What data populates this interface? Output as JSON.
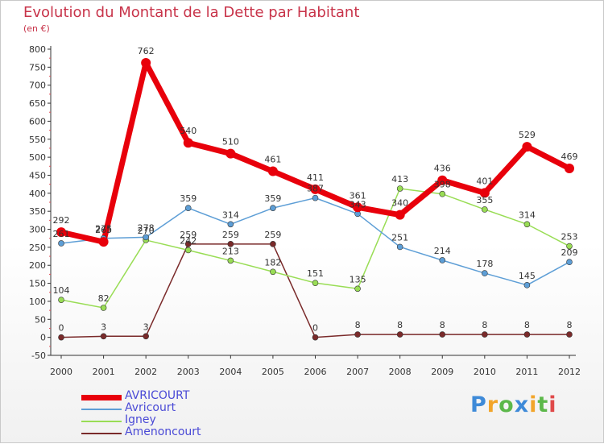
{
  "header": {
    "title": "Evolution du Montant de la Dette par Habitant",
    "subtitle": "(en €)"
  },
  "colors": {
    "title": "#c8344a",
    "axis": "#333333",
    "grid_tick": "#e0505a",
    "legend_text": "#4a4ad6",
    "label_text": "#333333"
  },
  "chart_data": {
    "type": "line",
    "title": "Evolution du Montant de la Dette par Habitant",
    "subtitle": "(en €)",
    "xlabel": "",
    "ylabel": "",
    "x": [
      "2000",
      "2001",
      "2002",
      "2003",
      "2004",
      "2005",
      "2006",
      "2007",
      "2008",
      "2009",
      "2010",
      "2011",
      "2012"
    ],
    "ylim": [
      -50,
      800
    ],
    "yticks": [
      -50,
      0,
      50,
      100,
      150,
      200,
      250,
      300,
      350,
      400,
      450,
      500,
      550,
      600,
      650,
      700,
      750,
      800
    ],
    "legend_position": "bottom-left",
    "series": [
      {
        "name": "AVRICOURT",
        "color": "#e8000b",
        "width": 7,
        "marker": 6,
        "values": [
          292,
          265,
          762,
          540,
          510,
          461,
          411,
          361,
          340,
          436,
          401,
          529,
          469
        ]
      },
      {
        "name": "Avricourt",
        "color": "#5d9ed6",
        "width": 1.5,
        "marker": 3.5,
        "values": [
          261,
          275,
          278,
          359,
          314,
          359,
          387,
          343,
          251,
          214,
          178,
          145,
          209
        ]
      },
      {
        "name": "Igney",
        "color": "#99dd55",
        "width": 1.5,
        "marker": 3.5,
        "values": [
          104,
          82,
          270,
          242,
          213,
          182,
          151,
          135,
          413,
          398,
          355,
          314,
          253
        ]
      },
      {
        "name": "Amenoncourt",
        "color": "#7a2a2a",
        "width": 1.5,
        "marker": 3.5,
        "values": [
          0,
          3,
          3,
          259,
          259,
          259,
          0,
          8,
          8,
          8,
          8,
          8,
          8
        ]
      }
    ]
  },
  "branding": {
    "letters": [
      {
        "char": "P",
        "color": "#3e8ad8"
      },
      {
        "char": "r",
        "color": "#f2a52a"
      },
      {
        "char": "o",
        "color": "#5cb84a"
      },
      {
        "char": "x",
        "color": "#3e8ad8"
      },
      {
        "char": "i",
        "color": "#f2a52a"
      },
      {
        "char": "t",
        "color": "#5cb84a"
      },
      {
        "char": "i",
        "color": "#e04a4a"
      }
    ]
  }
}
